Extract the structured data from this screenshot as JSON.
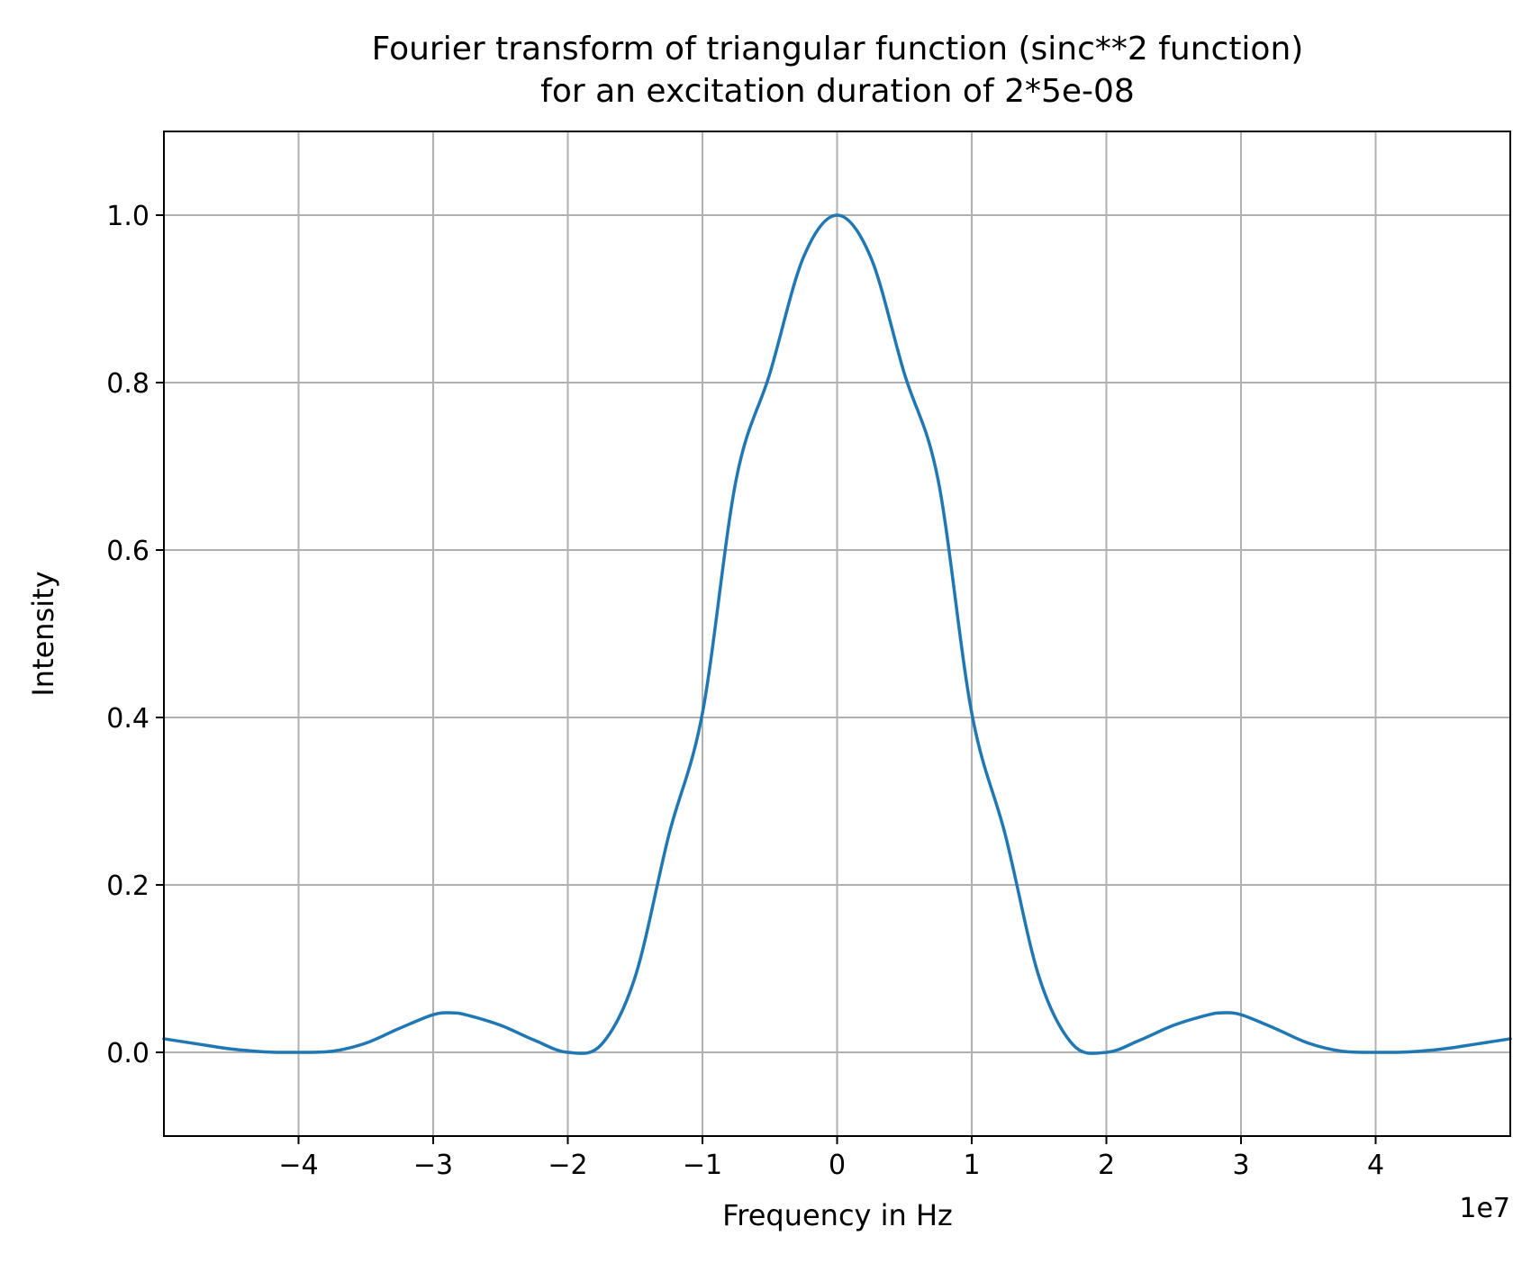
{
  "chart_data": {
    "type": "line",
    "title": "Fourier transform of triangular function (sinc**2 function)",
    "subtitle": "for an excitation duration of 2*5e-08",
    "xlabel": "Frequency in Hz",
    "ylabel": "Intensity",
    "x_offset_label": "1e7",
    "xlim": [
      -50000000,
      50000000
    ],
    "ylim": [
      -0.1,
      1.1
    ],
    "xticks": [
      -40000000,
      -30000000,
      -20000000,
      -10000000,
      0,
      10000000,
      20000000,
      30000000,
      40000000
    ],
    "xtick_labels": [
      "−4",
      "−3",
      "−2",
      "−1",
      "0",
      "1",
      "2",
      "3",
      "4"
    ],
    "yticks": [
      0.0,
      0.2,
      0.4,
      0.6,
      0.8,
      1.0
    ],
    "ytick_labels": [
      "0.0",
      "0.2",
      "0.4",
      "0.6",
      "0.8",
      "1.0"
    ],
    "grid": true,
    "series": [
      {
        "color": "#1f77b4",
        "x": [
          -50000000,
          -47500000,
          -45000000,
          -42500000,
          -40000000,
          -37500000,
          -35000000,
          -32500000,
          -30000000,
          -28600000,
          -27500000,
          -25000000,
          -22500000,
          -20000000,
          -17500000,
          -15000000,
          -12500000,
          -10000000,
          -7500000,
          -5000000,
          -2500000,
          0,
          2500000,
          5000000,
          7500000,
          10000000,
          12500000,
          15000000,
          17500000,
          20000000,
          22500000,
          25000000,
          27500000,
          28600000,
          30000000,
          32500000,
          35000000,
          37500000,
          40000000,
          42500000,
          45000000,
          47500000,
          50000000
        ],
        "y": [
          0.0162,
          0.01,
          0.004,
          0.0006,
          0.0,
          0.0013,
          0.011,
          0.0287,
          0.045,
          0.0472,
          0.0446,
          0.0324,
          0.0146,
          0.0,
          0.0095,
          0.0901,
          0.2594,
          0.4053,
          0.6839,
          0.8106,
          0.9496,
          1.0,
          0.9496,
          0.8106,
          0.6839,
          0.4053,
          0.2594,
          0.0901,
          0.0095,
          0.0,
          0.0146,
          0.0324,
          0.0446,
          0.0472,
          0.045,
          0.0287,
          0.011,
          0.0013,
          0.0,
          0.0006,
          0.004,
          0.01,
          0.0162
        ]
      }
    ]
  }
}
